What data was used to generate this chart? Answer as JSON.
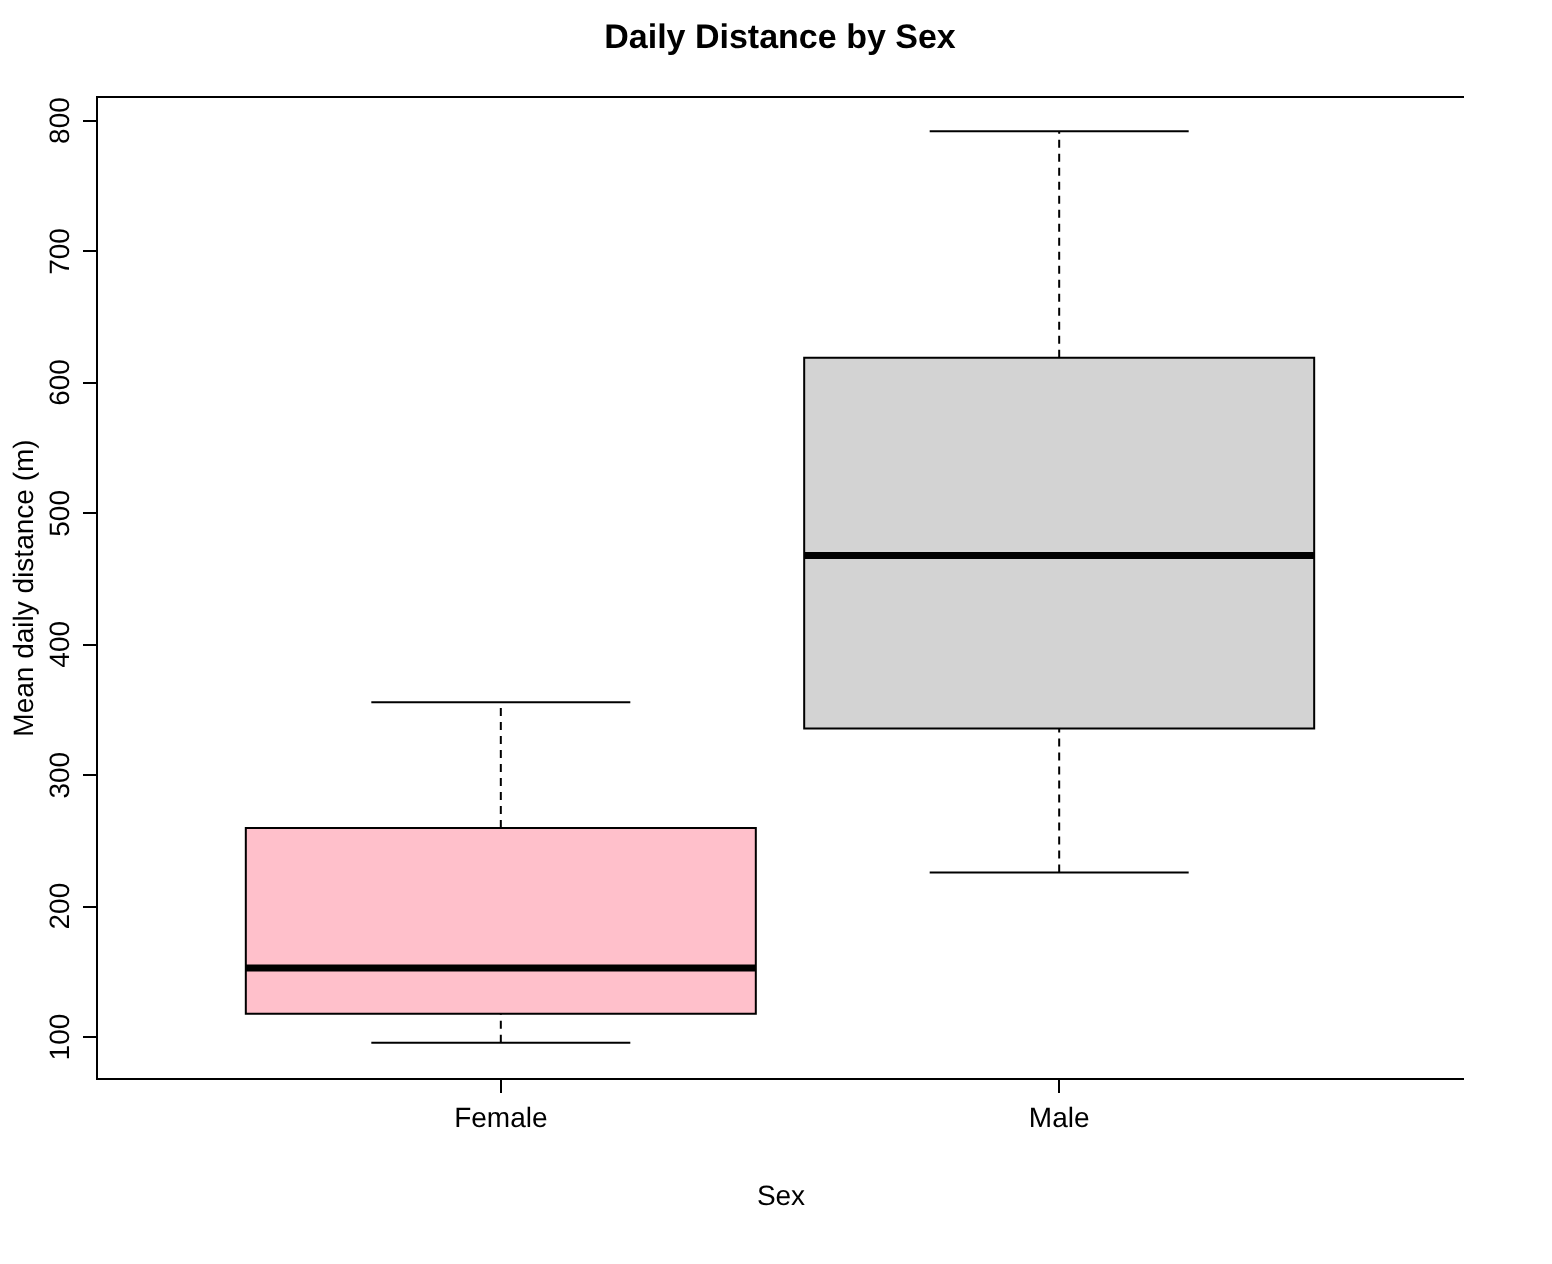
{
  "chart_data": {
    "type": "box",
    "title": "Daily Distance by Sex",
    "xlabel": "Sex",
    "ylabel": "Mean daily distance (m)",
    "categories": [
      "Female",
      "Male"
    ],
    "boxes": [
      {
        "low": 95,
        "q1": 117,
        "median": 152,
        "q3": 259,
        "high": 355
      },
      {
        "low": 225,
        "q1": 335,
        "median": 467,
        "q3": 618,
        "high": 791
      }
    ],
    "colors": [
      "#ffc0cb",
      "#d3d3d3"
    ],
    "ylim": [
      68,
      818
    ],
    "yticks": [
      100,
      200,
      300,
      400,
      500,
      600,
      700,
      800
    ],
    "grid": false
  }
}
